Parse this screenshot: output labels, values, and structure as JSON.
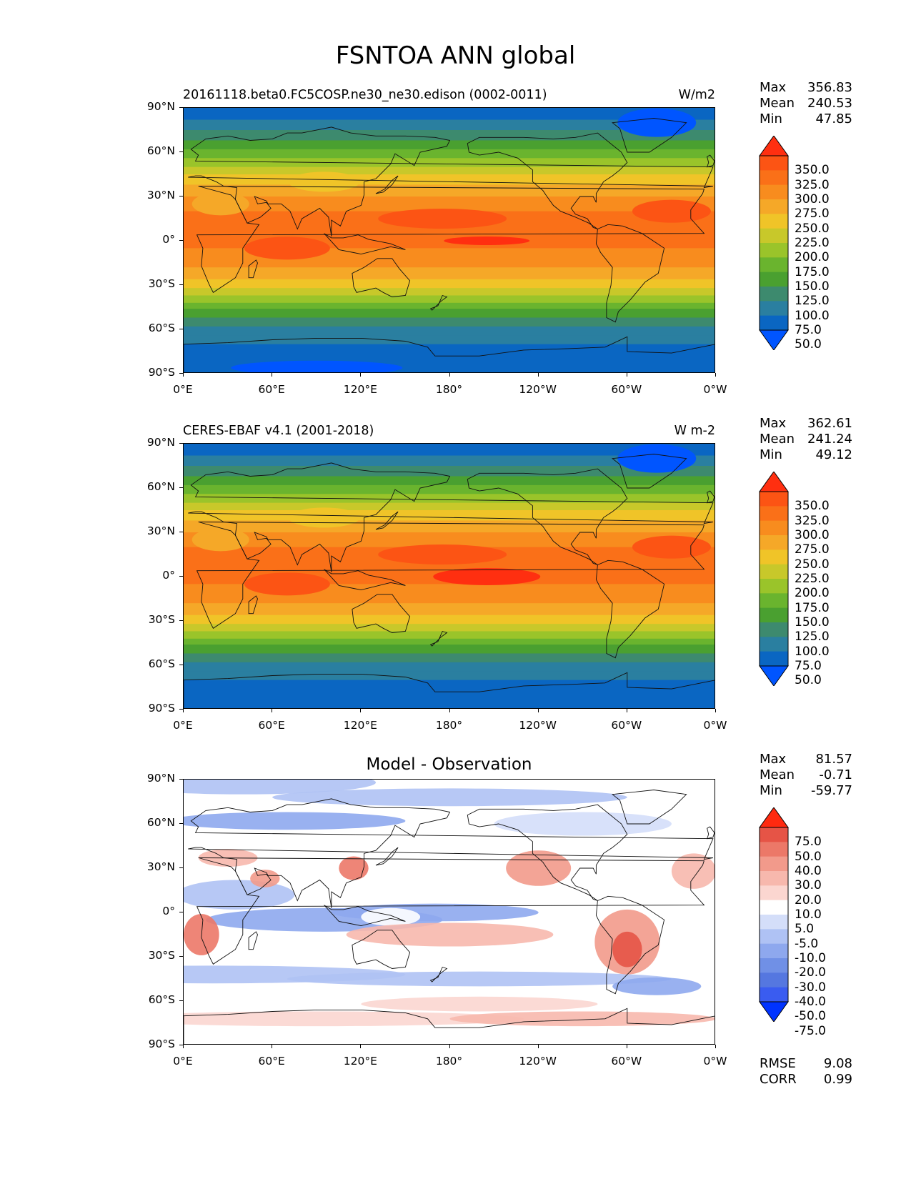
{
  "title": "FSNTOA ANN global",
  "axes": {
    "lat_labels": [
      "90°N",
      "60°N",
      "30°N",
      "0°",
      "30°S",
      "60°S",
      "90°S"
    ],
    "lon_labels": [
      "0°E",
      "60°E",
      "120°E",
      "180°",
      "120°W",
      "60°W",
      "0°W"
    ]
  },
  "panels": [
    {
      "title_left": "20161118.beta0.FC5COSP.ne30_ne30.edison (0002-0011)",
      "title_right": "W/m2",
      "stats": {
        "max_label": "Max",
        "max": "356.83",
        "mean_label": "Mean",
        "mean": "240.53",
        "min_label": "Min",
        "min": "47.85"
      },
      "colorbar_labels": [
        "350.0",
        "325.0",
        "300.0",
        "275.0",
        "250.0",
        "225.0",
        "200.0",
        "175.0",
        "150.0",
        "125.0",
        "100.0",
        "75.0",
        "50.0"
      ]
    },
    {
      "title_left": "CERES-EBAF v4.1 (2001-2018)",
      "title_right": "W m-2",
      "stats": {
        "max_label": "Max",
        "max": "362.61",
        "mean_label": "Mean",
        "mean": "241.24",
        "min_label": "Min",
        "min": "49.12"
      },
      "colorbar_labels": [
        "350.0",
        "325.0",
        "300.0",
        "275.0",
        "250.0",
        "225.0",
        "200.0",
        "175.0",
        "150.0",
        "125.0",
        "100.0",
        "75.0",
        "50.0"
      ]
    },
    {
      "title_center": "Model - Observation",
      "stats": {
        "max_label": "Max",
        "max": "81.57",
        "mean_label": "Mean",
        "mean": "-0.71",
        "min_label": "Min",
        "min": "-59.77"
      },
      "colorbar_labels": [
        "75.0",
        "50.0",
        "40.0",
        "30.0",
        "20.0",
        "10.0",
        "5.0",
        "-5.0",
        "-10.0",
        "-20.0",
        "-30.0",
        "-40.0",
        "-50.0",
        "-75.0"
      ],
      "rmse_label": "RMSE",
      "rmse": "9.08",
      "corr_label": "CORR",
      "corr": "0.99"
    }
  ],
  "colors": {
    "abs_scale": [
      "#0055ff",
      "#0a66c2",
      "#2a7fa0",
      "#3d8a6e",
      "#4aa030",
      "#6ab42e",
      "#9ac42a",
      "#c8c82a",
      "#f0c428",
      "#f5a828",
      "#f88c1e",
      "#fa7018",
      "#fc5414",
      "#ff2f10"
    ],
    "diff_scale": [
      "#0033ff",
      "#3a5cf0",
      "#5577e0",
      "#7090e6",
      "#8ea8ee",
      "#afc2f4",
      "#d4def9",
      "#ffffff",
      "#fbd6d0",
      "#f7b8ad",
      "#f29a8b",
      "#ec7868",
      "#e65446",
      "#ff2a10"
    ]
  }
}
